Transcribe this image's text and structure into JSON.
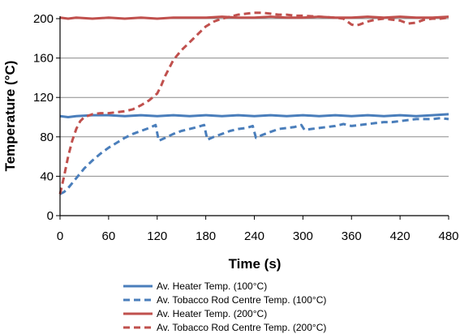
{
  "chart_data": {
    "type": "line",
    "xlabel": "Time (s)",
    "ylabel": "Temperature (°C)",
    "xlim": [
      0,
      480
    ],
    "ylim": [
      0,
      200
    ],
    "xticks": [
      0,
      60,
      120,
      180,
      240,
      300,
      360,
      420,
      480
    ],
    "yticks": [
      0,
      40,
      80,
      120,
      160,
      200
    ],
    "grid": "horizontal",
    "legend_position": "bottom",
    "series": [
      {
        "name": "Av. Heater Temp. (100°C)",
        "color": "#4a7ebb",
        "style": "solid",
        "x": [
          0,
          10,
          20,
          40,
          60,
          80,
          100,
          120,
          140,
          160,
          180,
          200,
          220,
          240,
          260,
          280,
          300,
          320,
          340,
          360,
          380,
          400,
          420,
          440,
          460,
          480
        ],
        "y": [
          101,
          100,
          101,
          102,
          102,
          101,
          102,
          101,
          102,
          101,
          102,
          101,
          102,
          101,
          102,
          101,
          102,
          101,
          102,
          101,
          102,
          101,
          102,
          101,
          102,
          103
        ]
      },
      {
        "name": "Av. Tobacco Rod Centre Temp. (100°C)",
        "color": "#4a7ebb",
        "style": "dashed",
        "x": [
          0,
          5,
          10,
          20,
          30,
          40,
          50,
          60,
          70,
          80,
          90,
          100,
          110,
          118,
          122,
          130,
          140,
          150,
          160,
          170,
          178,
          182,
          190,
          200,
          210,
          220,
          230,
          238,
          242,
          250,
          260,
          270,
          280,
          290,
          298,
          302,
          310,
          320,
          330,
          340,
          350,
          360,
          370,
          380,
          390,
          400,
          410,
          420,
          430,
          440,
          450,
          460,
          470,
          480
        ],
        "y": [
          22,
          24,
          28,
          38,
          48,
          56,
          63,
          69,
          74,
          79,
          83,
          86,
          89,
          92,
          76,
          79,
          83,
          86,
          88,
          90,
          92,
          77,
          80,
          83,
          86,
          88,
          89,
          91,
          79,
          82,
          85,
          88,
          89,
          90,
          92,
          87,
          88,
          89,
          90,
          91,
          93,
          91,
          92,
          93,
          94,
          95,
          95,
          96,
          97,
          98,
          98,
          98,
          99,
          98
        ]
      },
      {
        "name": "Av. Heater Temp. (200°C)",
        "color": "#c0504d",
        "style": "solid",
        "x": [
          0,
          10,
          20,
          40,
          60,
          80,
          100,
          120,
          140,
          160,
          180,
          200,
          220,
          240,
          260,
          280,
          300,
          320,
          340,
          360,
          380,
          400,
          420,
          440,
          460,
          480
        ],
        "y": [
          201,
          200,
          201,
          200,
          201,
          200,
          201,
          200,
          201,
          201,
          201,
          202,
          201,
          201,
          202,
          201,
          201,
          202,
          201,
          201,
          202,
          201,
          202,
          201,
          201,
          202
        ]
      },
      {
        "name": "Av. Tobacco Rod Centre Temp. (200°C)",
        "color": "#c0504d",
        "style": "dashed",
        "x": [
          0,
          5,
          10,
          15,
          20,
          25,
          30,
          40,
          50,
          60,
          70,
          80,
          90,
          100,
          110,
          120,
          125,
          130,
          135,
          140,
          150,
          160,
          170,
          180,
          190,
          200,
          210,
          220,
          230,
          240,
          250,
          260,
          270,
          280,
          290,
          300,
          320,
          340,
          350,
          355,
          360,
          365,
          370,
          380,
          390,
          400,
          410,
          420,
          430,
          440,
          450,
          460,
          470,
          480
        ],
        "y": [
          22,
          40,
          60,
          76,
          88,
          96,
          100,
          103,
          104,
          104,
          105,
          106,
          108,
          112,
          117,
          124,
          132,
          142,
          150,
          158,
          168,
          176,
          184,
          192,
          197,
          200,
          202,
          204,
          205,
          206,
          206,
          205,
          204,
          204,
          203,
          203,
          202,
          201,
          200,
          197,
          194,
          193,
          194,
          197,
          199,
          200,
          199,
          198,
          195,
          196,
          199,
          200,
          200,
          201
        ]
      }
    ]
  }
}
